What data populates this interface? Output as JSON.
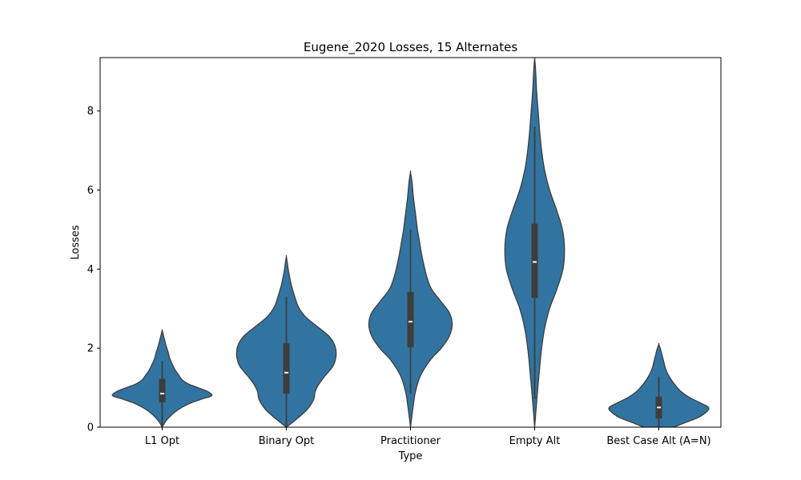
{
  "chart_data": {
    "type": "violin",
    "title": "Eugene_2020 Losses, 15 Alternates",
    "xlabel": "Type",
    "ylabel": "Losses",
    "ylim": [
      0,
      9.35
    ],
    "yticks": [
      0,
      2,
      4,
      6,
      8
    ],
    "grid": false,
    "color": "#3274a1",
    "edge_color": "#3d3d3d",
    "categories": [
      "L1 Opt",
      "Binary Opt",
      "Practitioner",
      "Empty Alt",
      "Best Case Alt (A=N)"
    ],
    "series": [
      {
        "category": "L1 Opt",
        "min": 0.0,
        "q1": 0.63,
        "median": 0.85,
        "q3": 1.22,
        "max": 2.45,
        "whisker_low": 0.0,
        "whisker_high": 1.68,
        "density": [
          [
            0.0,
            0.0
          ],
          [
            0.15,
            0.07
          ],
          [
            0.3,
            0.18
          ],
          [
            0.45,
            0.33
          ],
          [
            0.6,
            0.55
          ],
          [
            0.72,
            0.82
          ],
          [
            0.8,
            1.0
          ],
          [
            0.9,
            0.92
          ],
          [
            1.0,
            0.72
          ],
          [
            1.1,
            0.52
          ],
          [
            1.2,
            0.4
          ],
          [
            1.32,
            0.33
          ],
          [
            1.45,
            0.26
          ],
          [
            1.6,
            0.2
          ],
          [
            1.75,
            0.15
          ],
          [
            1.9,
            0.12
          ],
          [
            2.05,
            0.08
          ],
          [
            2.2,
            0.05
          ],
          [
            2.35,
            0.02
          ],
          [
            2.45,
            0.0
          ]
        ]
      },
      {
        "category": "Binary Opt",
        "min": 0.0,
        "q1": 0.85,
        "median": 1.38,
        "q3": 2.12,
        "max": 4.32,
        "whisker_low": 0.0,
        "whisker_high": 3.3,
        "density": [
          [
            0.0,
            0.0
          ],
          [
            0.2,
            0.2
          ],
          [
            0.45,
            0.42
          ],
          [
            0.7,
            0.55
          ],
          [
            0.9,
            0.58
          ],
          [
            1.1,
            0.66
          ],
          [
            1.3,
            0.78
          ],
          [
            1.55,
            0.94
          ],
          [
            1.8,
            1.0
          ],
          [
            2.05,
            0.98
          ],
          [
            2.3,
            0.86
          ],
          [
            2.55,
            0.62
          ],
          [
            2.8,
            0.38
          ],
          [
            3.05,
            0.24
          ],
          [
            3.3,
            0.17
          ],
          [
            3.6,
            0.1
          ],
          [
            3.9,
            0.05
          ],
          [
            4.15,
            0.02
          ],
          [
            4.32,
            0.0
          ]
        ]
      },
      {
        "category": "Practitioner",
        "min": 0.0,
        "q1": 2.02,
        "median": 2.67,
        "q3": 3.42,
        "max": 6.45,
        "whisker_low": 0.85,
        "whisker_high": 5.0,
        "density": [
          [
            0.0,
            0.0
          ],
          [
            0.5,
            0.05
          ],
          [
            0.9,
            0.1
          ],
          [
            1.3,
            0.2
          ],
          [
            1.7,
            0.4
          ],
          [
            2.0,
            0.62
          ],
          [
            2.3,
            0.78
          ],
          [
            2.6,
            0.84
          ],
          [
            2.9,
            0.78
          ],
          [
            3.2,
            0.6
          ],
          [
            3.5,
            0.42
          ],
          [
            3.8,
            0.33
          ],
          [
            4.1,
            0.27
          ],
          [
            4.4,
            0.22
          ],
          [
            4.7,
            0.18
          ],
          [
            5.0,
            0.14
          ],
          [
            5.4,
            0.1
          ],
          [
            5.8,
            0.06
          ],
          [
            6.2,
            0.03
          ],
          [
            6.45,
            0.0
          ]
        ]
      },
      {
        "category": "Empty Alt",
        "min": 0.0,
        "q1": 3.27,
        "median": 4.18,
        "q3": 5.15,
        "max": 9.35,
        "whisker_low": 0.72,
        "whisker_high": 7.6,
        "density": [
          [
            0.0,
            0.0
          ],
          [
            0.8,
            0.05
          ],
          [
            1.5,
            0.1
          ],
          [
            2.0,
            0.14
          ],
          [
            2.5,
            0.2
          ],
          [
            3.0,
            0.3
          ],
          [
            3.5,
            0.45
          ],
          [
            4.0,
            0.57
          ],
          [
            4.5,
            0.6
          ],
          [
            5.0,
            0.56
          ],
          [
            5.5,
            0.44
          ],
          [
            6.0,
            0.3
          ],
          [
            6.5,
            0.2
          ],
          [
            7.0,
            0.14
          ],
          [
            7.5,
            0.1
          ],
          [
            8.0,
            0.07
          ],
          [
            8.5,
            0.04
          ],
          [
            9.0,
            0.02
          ],
          [
            9.35,
            0.0
          ]
        ]
      },
      {
        "category": "Best Case Alt (A=N)",
        "min": 0.0,
        "q1": 0.22,
        "median": 0.5,
        "q3": 0.77,
        "max": 2.1,
        "whisker_low": 0.0,
        "whisker_high": 1.28,
        "density": [
          [
            0.0,
            0.3
          ],
          [
            0.1,
            0.5
          ],
          [
            0.25,
            0.8
          ],
          [
            0.4,
            0.97
          ],
          [
            0.5,
            1.0
          ],
          [
            0.6,
            0.86
          ],
          [
            0.75,
            0.62
          ],
          [
            0.9,
            0.45
          ],
          [
            1.05,
            0.34
          ],
          [
            1.2,
            0.25
          ],
          [
            1.35,
            0.18
          ],
          [
            1.5,
            0.13
          ],
          [
            1.65,
            0.1
          ],
          [
            1.8,
            0.07
          ],
          [
            1.95,
            0.04
          ],
          [
            2.1,
            0.0
          ]
        ]
      }
    ]
  }
}
